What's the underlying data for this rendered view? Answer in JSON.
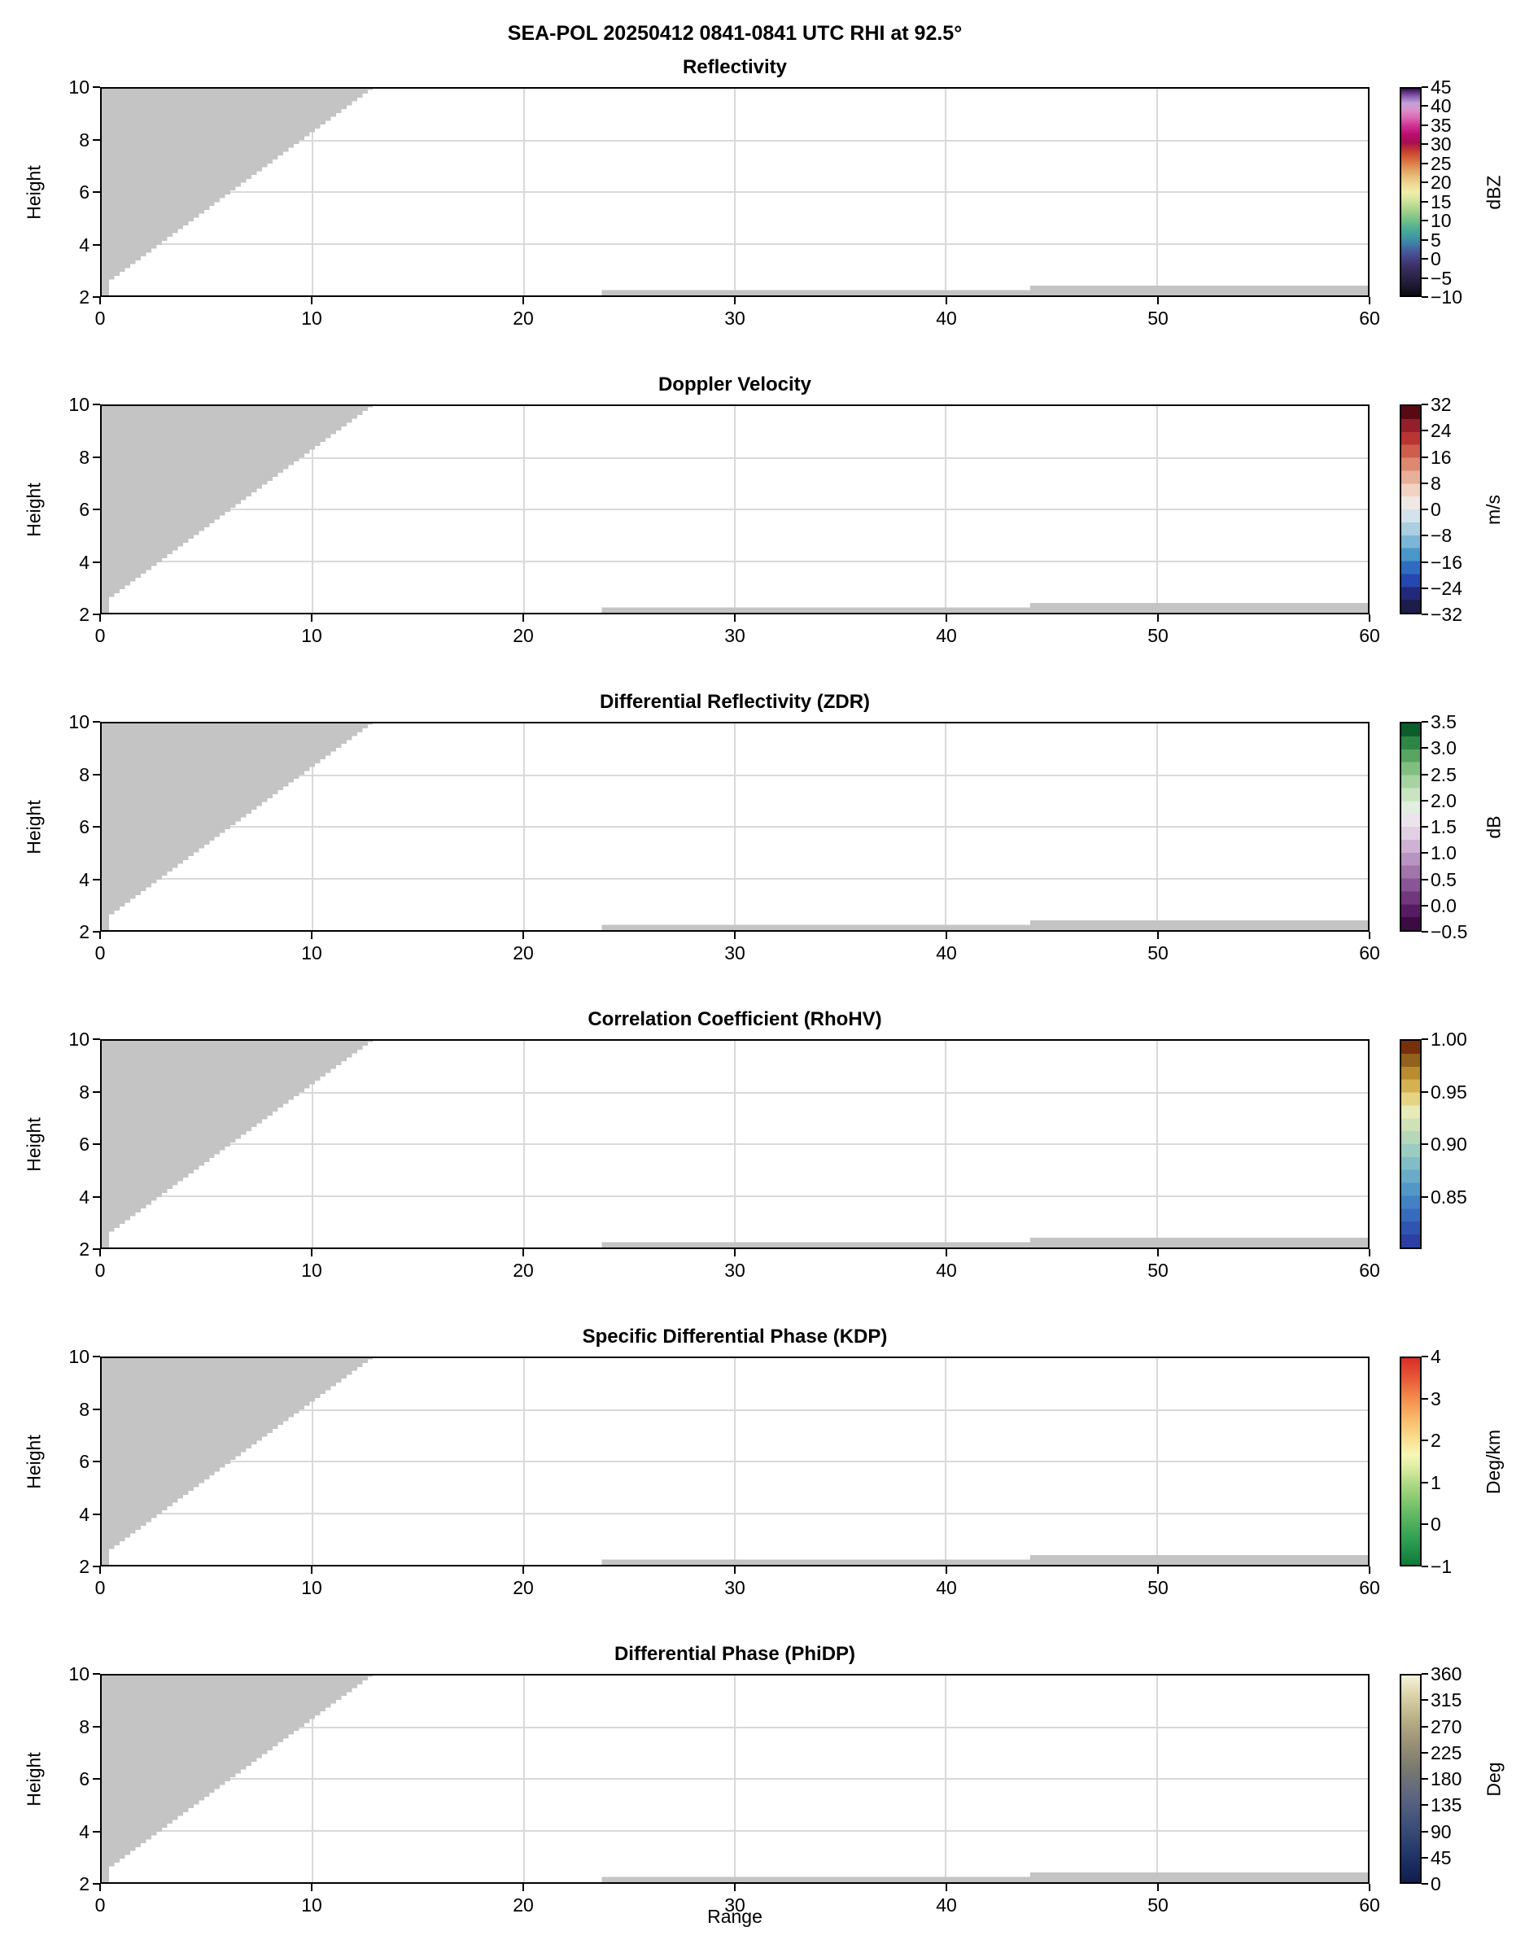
{
  "colors": {
    "background": "#ffffff",
    "axis": "#000000",
    "grid": "#d9d9d9",
    "no_data": "#c4c4c4"
  },
  "chart_data": {
    "type": "heatmap",
    "suptitle": "SEA-POL 20250412 0841-0841 UTC RHI at 92.5°",
    "xlabel": "Range",
    "ylabel": "Height",
    "x_range": [
      0,
      60
    ],
    "y_range": [
      2,
      10
    ],
    "grid": true,
    "x_ticks": [
      {
        "t": "0",
        "v": 0
      },
      {
        "t": "10",
        "v": 10
      },
      {
        "t": "20",
        "v": 20
      },
      {
        "t": "30",
        "v": 30
      },
      {
        "t": "40",
        "v": 40
      },
      {
        "t": "50",
        "v": 50
      },
      {
        "t": "60",
        "v": 60
      }
    ],
    "y_ticks": [
      {
        "t": "2",
        "v": 2
      },
      {
        "t": "4",
        "v": 4
      },
      {
        "t": "6",
        "v": 6
      },
      {
        "t": "8",
        "v": 8
      },
      {
        "t": "10",
        "v": 10
      }
    ],
    "no_data_mask": {
      "staircase": {
        "x_start": 0.35,
        "step_width": 0.25,
        "slope": 0.6,
        "intercept": 2.4,
        "top": 10
      },
      "bottom_strips": [
        {
          "x0": 23.7,
          "x1": 44.0,
          "y0": 2.0,
          "y1": 2.2
        },
        {
          "x0": 44.0,
          "x1": 60.0,
          "y0": 2.0,
          "y1": 2.38
        }
      ]
    },
    "panels": [
      {
        "title": "Reflectivity",
        "unit": "dBZ",
        "scale_min": -10,
        "scale_max": 45,
        "cbar_ticks": [
          {
            "t": "45",
            "v": 45
          },
          {
            "t": "40",
            "v": 40
          },
          {
            "t": "35",
            "v": 35
          },
          {
            "t": "30",
            "v": 30
          },
          {
            "t": "25",
            "v": 25
          },
          {
            "t": "20",
            "v": 20
          },
          {
            "t": "15",
            "v": 15
          },
          {
            "t": "10",
            "v": 10
          },
          {
            "t": "5",
            "v": 5
          },
          {
            "t": "0",
            "v": 0
          },
          {
            "t": "−5",
            "v": -5
          },
          {
            "t": "−10",
            "v": -10
          }
        ],
        "gradient": {
          "type": "stops",
          "stops": [
            {
              "p": 0.0,
              "c": "#0c0b12"
            },
            {
              "p": 0.05,
              "c": "#201a33"
            },
            {
              "p": 0.09,
              "c": "#2c2348"
            },
            {
              "p": 0.14,
              "c": "#3a3066"
            },
            {
              "p": 0.18,
              "c": "#474287"
            },
            {
              "p": 0.22,
              "c": "#44609f"
            },
            {
              "p": 0.25,
              "c": "#3f7fa6"
            },
            {
              "p": 0.28,
              "c": "#3f96a2"
            },
            {
              "p": 0.32,
              "c": "#4cad96"
            },
            {
              "p": 0.36,
              "c": "#6fbf87"
            },
            {
              "p": 0.41,
              "c": "#a3d28a"
            },
            {
              "p": 0.46,
              "c": "#d3e49c"
            },
            {
              "p": 0.5,
              "c": "#f1eeaa"
            },
            {
              "p": 0.55,
              "c": "#ecd28c"
            },
            {
              "p": 0.6,
              "c": "#e3a867"
            },
            {
              "p": 0.64,
              "c": "#dc7d48"
            },
            {
              "p": 0.68,
              "c": "#d05233"
            },
            {
              "p": 0.71,
              "c": "#bf2f35"
            },
            {
              "p": 0.74,
              "c": "#a60f50"
            },
            {
              "p": 0.78,
              "c": "#bb0e6f"
            },
            {
              "p": 0.82,
              "c": "#cf3092"
            },
            {
              "p": 0.86,
              "c": "#dc69b5"
            },
            {
              "p": 0.9,
              "c": "#d992cd"
            },
            {
              "p": 0.93,
              "c": "#c4a0d8"
            },
            {
              "p": 0.96,
              "c": "#8f64b5"
            },
            {
              "p": 0.985,
              "c": "#5b2d7d"
            },
            {
              "p": 1.0,
              "c": "#330f4a"
            }
          ]
        }
      },
      {
        "title": "Doppler Velocity",
        "unit": "m/s",
        "scale_min": -32,
        "scale_max": 32,
        "cbar_ticks": [
          {
            "t": "32",
            "v": 32
          },
          {
            "t": "24",
            "v": 24
          },
          {
            "t": "16",
            "v": 16
          },
          {
            "t": "8",
            "v": 8
          },
          {
            "t": "0",
            "v": 0
          },
          {
            "t": "−8",
            "v": -8
          },
          {
            "t": "−16",
            "v": -16
          },
          {
            "t": "−24",
            "v": -24
          },
          {
            "t": "−32",
            "v": -32
          }
        ],
        "gradient": {
          "type": "bands",
          "bands": [
            "#1d1d4b",
            "#21297b",
            "#2547af",
            "#2f6cc1",
            "#4b97ca",
            "#7cb6d6",
            "#a9cfe1",
            "#d3e3ec",
            "#efe8e4",
            "#f2d2c2",
            "#e8af99",
            "#dd8971",
            "#cd5e4c",
            "#b93533",
            "#921f29",
            "#570a14"
          ]
        }
      },
      {
        "title": "Differential Reflectivity (ZDR)",
        "unit": "dB",
        "scale_min": -0.5,
        "scale_max": 3.5,
        "cbar_ticks": [
          {
            "t": "3.5",
            "v": 3.5
          },
          {
            "t": "3.0",
            "v": 3.0
          },
          {
            "t": "2.5",
            "v": 2.5
          },
          {
            "t": "2.0",
            "v": 2.0
          },
          {
            "t": "1.5",
            "v": 1.5
          },
          {
            "t": "1.0",
            "v": 1.0
          },
          {
            "t": "0.5",
            "v": 0.5
          },
          {
            "t": "0.0",
            "v": 0.0
          },
          {
            "t": "−0.5",
            "v": -0.5
          }
        ],
        "gradient": {
          "type": "bands",
          "bands": [
            "#3c0b43",
            "#571b63",
            "#71377d",
            "#8a5596",
            "#a274ac",
            "#b993c1",
            "#cfb1d4",
            "#e2cfe4",
            "#ece4ec",
            "#e2eedf",
            "#c8e4c1",
            "#a7d3a1",
            "#81bf81",
            "#58a460",
            "#2e8644",
            "#0b5e2b"
          ]
        }
      },
      {
        "title": "Correlation Coefficient (RhoHV)",
        "unit": "",
        "scale_min": 0.8,
        "scale_max": 1.0,
        "cbar_ticks": [
          {
            "t": "1.00",
            "v": 1.0
          },
          {
            "t": "0.95",
            "v": 0.95
          },
          {
            "t": "0.90",
            "v": 0.9
          },
          {
            "t": "0.85",
            "v": 0.85
          }
        ],
        "gradient": {
          "type": "bands",
          "bands": [
            "#2b3fa4",
            "#2f55b2",
            "#376cbd",
            "#4282c4",
            "#5298c7",
            "#68acc8",
            "#80bdc6",
            "#9accc1",
            "#b5d8bb",
            "#cfe2b5",
            "#e6ebb8",
            "#e6d383",
            "#d4b152",
            "#b98c32",
            "#94601d",
            "#77300c"
          ]
        }
      },
      {
        "title": "Specific Differential Phase (KDP)",
        "unit": "Deg/km",
        "scale_min": -1,
        "scale_max": 4,
        "cbar_ticks": [
          {
            "t": "4",
            "v": 4
          },
          {
            "t": "3",
            "v": 3
          },
          {
            "t": "2",
            "v": 2
          },
          {
            "t": "1",
            "v": 1
          },
          {
            "t": "0",
            "v": 0
          },
          {
            "t": "−1",
            "v": -1
          }
        ],
        "gradient": {
          "type": "stops",
          "stops": [
            {
              "p": 0.0,
              "c": "#0e7a3b"
            },
            {
              "p": 0.12,
              "c": "#2f9e51"
            },
            {
              "p": 0.25,
              "c": "#63bb63"
            },
            {
              "p": 0.38,
              "c": "#a8d67f"
            },
            {
              "p": 0.47,
              "c": "#dceda2"
            },
            {
              "p": 0.53,
              "c": "#f7f7b7"
            },
            {
              "p": 0.6,
              "c": "#fbe294"
            },
            {
              "p": 0.7,
              "c": "#f8bd6d"
            },
            {
              "p": 0.8,
              "c": "#f38f4e"
            },
            {
              "p": 0.9,
              "c": "#e85a38"
            },
            {
              "p": 1.0,
              "c": "#d92e25"
            }
          ]
        }
      },
      {
        "title": "Differential Phase (PhiDP)",
        "unit": "Deg",
        "scale_min": 0,
        "scale_max": 360,
        "cbar_ticks": [
          {
            "t": "360",
            "v": 360
          },
          {
            "t": "315",
            "v": 315
          },
          {
            "t": "270",
            "v": 270
          },
          {
            "t": "225",
            "v": 225
          },
          {
            "t": "180",
            "v": 180
          },
          {
            "t": "135",
            "v": 135
          },
          {
            "t": "90",
            "v": 90
          },
          {
            "t": "45",
            "v": 45
          },
          {
            "t": "0",
            "v": 0
          }
        ],
        "gradient": {
          "type": "stops",
          "stops": [
            {
              "p": 0.0,
              "c": "#0f1d4d"
            },
            {
              "p": 0.13,
              "c": "#1f3568"
            },
            {
              "p": 0.27,
              "c": "#3c4f79"
            },
            {
              "p": 0.42,
              "c": "#5d6680"
            },
            {
              "p": 0.55,
              "c": "#79796f"
            },
            {
              "p": 0.68,
              "c": "#9a9377"
            },
            {
              "p": 0.8,
              "c": "#bcb389"
            },
            {
              "p": 0.9,
              "c": "#d9d2a8"
            },
            {
              "p": 1.0,
              "c": "#f6f3da"
            }
          ]
        }
      }
    ]
  }
}
